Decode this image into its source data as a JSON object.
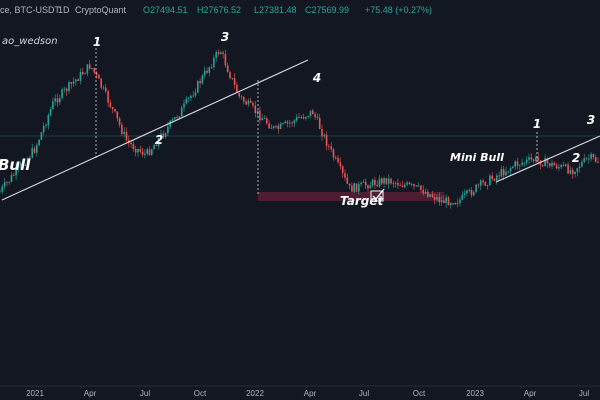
{
  "header": {
    "symbol": "ce, BTC-USDT",
    "interval": "1D",
    "source": "CryptoQuant",
    "open": "O27494.51",
    "high": "H27676.52",
    "low": "L27381.48",
    "close": "C27569.99",
    "change": "+75.48 (+0.27%)"
  },
  "author": "ao_wedson",
  "colors": {
    "background": "#131722",
    "up": "#26a69a",
    "down": "#ef5350",
    "line": "#d1d4dc",
    "target_zone": "#5a1f35",
    "price_line": "#26a69a"
  },
  "chart_data": {
    "type": "candlestick",
    "title": "",
    "x_axis_ticks": [
      "2021",
      "Apr",
      "Jul",
      "Oct",
      "2022",
      "Apr",
      "Jul",
      "Oct",
      "2023",
      "Apr",
      "Jul"
    ],
    "y_axis": "hidden",
    "grid": false,
    "series": [
      {
        "approx_close_path": [
          {
            "t": "2020-10",
            "v": 11
          },
          {
            "t": "2021-01",
            "v": 33
          },
          {
            "t": "2021-02",
            "v": 48
          },
          {
            "t": "2021-04",
            "v": 60
          },
          {
            "t": "2021-05",
            "v": 48
          },
          {
            "t": "2021-06",
            "v": 35
          },
          {
            "t": "2021-07",
            "v": 31
          },
          {
            "t": "2021-09",
            "v": 46
          },
          {
            "t": "2021-11",
            "v": 65
          },
          {
            "t": "2021-12",
            "v": 50
          },
          {
            "t": "2022-02",
            "v": 39
          },
          {
            "t": "2022-04",
            "v": 45
          },
          {
            "t": "2022-05",
            "v": 32
          },
          {
            "t": "2022-06",
            "v": 20
          },
          {
            "t": "2022-08",
            "v": 23
          },
          {
            "t": "2022-10",
            "v": 19.5
          },
          {
            "t": "2022-11",
            "v": 16
          },
          {
            "t": "2022-12",
            "v": 16.5
          },
          {
            "t": "2023-01",
            "v": 21
          },
          {
            "t": "2023-03",
            "v": 28
          },
          {
            "t": "2023-04",
            "v": 29.5
          },
          {
            "t": "2023-06",
            "v": 26
          },
          {
            "t": "2023-07",
            "v": 30
          },
          {
            "t": "2023-08",
            "v": 27.5
          }
        ]
      }
    ],
    "annotations": [
      {
        "label": "Bull",
        "kind": "text"
      },
      {
        "label": "1",
        "kind": "wave"
      },
      {
        "label": "2",
        "kind": "wave"
      },
      {
        "label": "3",
        "kind": "wave"
      },
      {
        "label": "4",
        "kind": "wave"
      },
      {
        "label": "Target",
        "kind": "text"
      },
      {
        "label": "Mini Bull",
        "kind": "text"
      },
      {
        "label": "1",
        "kind": "wave"
      },
      {
        "label": "2",
        "kind": "wave"
      },
      {
        "label": "3",
        "kind": "wave"
      }
    ]
  }
}
